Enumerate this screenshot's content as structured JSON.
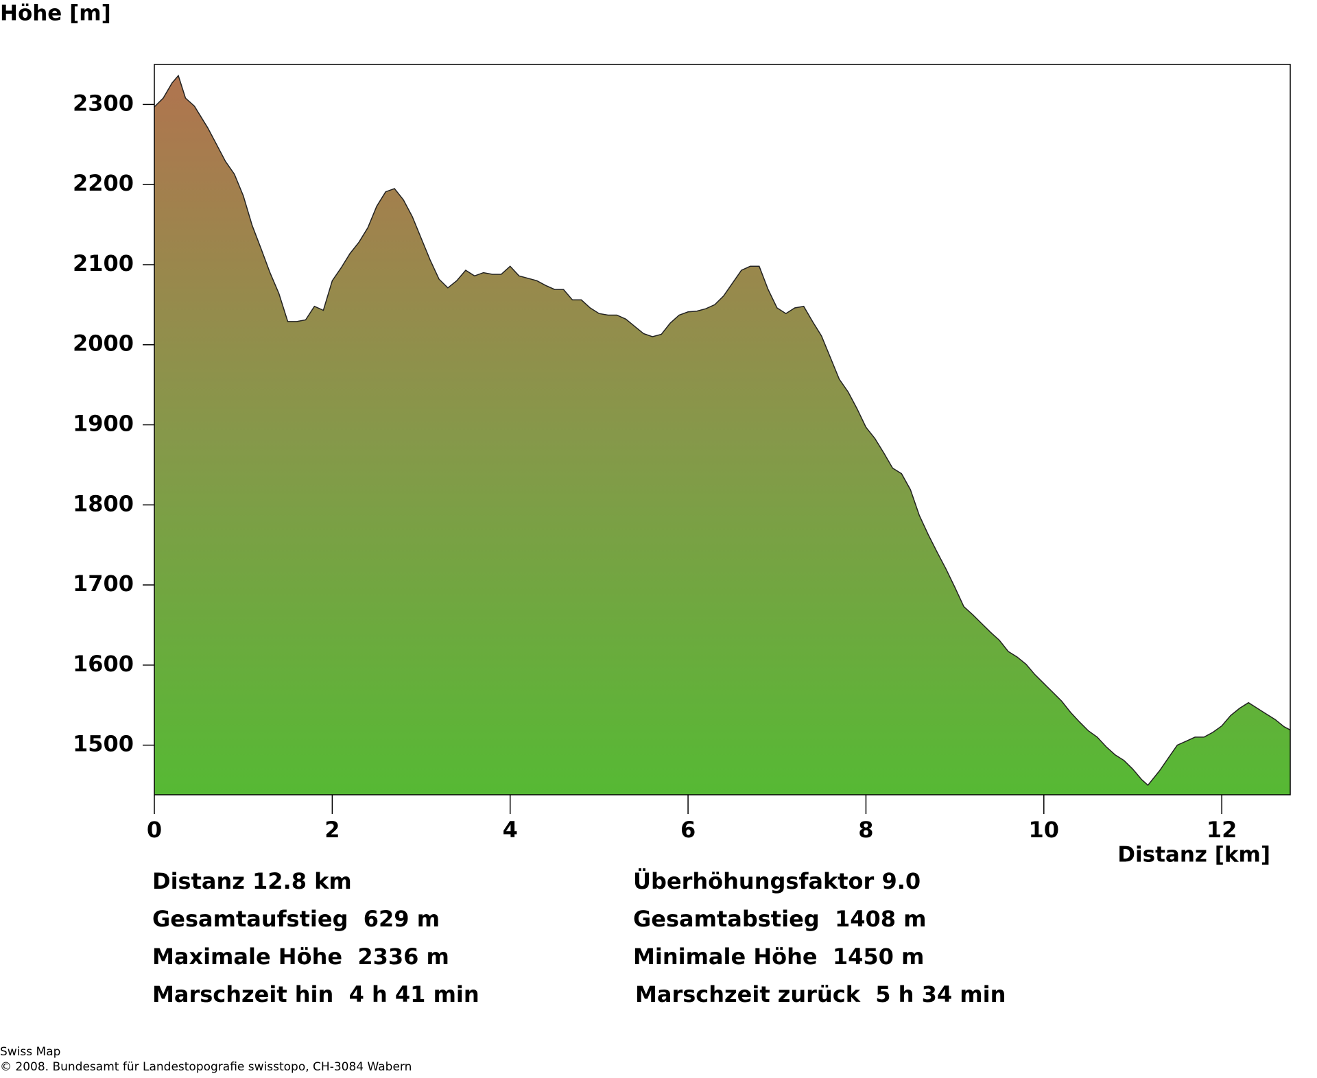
{
  "chart_data": {
    "type": "area",
    "y_label": "Höhe [m]",
    "x_label": "Distanz [km]",
    "x": [
      0,
      0.1,
      0.2,
      0.27,
      0.35,
      0.45,
      0.5,
      0.6,
      0.7,
      0.8,
      0.9,
      1.0,
      1.1,
      1.2,
      1.3,
      1.4,
      1.5,
      1.6,
      1.7,
      1.8,
      1.9,
      2.0,
      2.1,
      2.2,
      2.3,
      2.4,
      2.5,
      2.6,
      2.7,
      2.8,
      2.9,
      3.0,
      3.1,
      3.2,
      3.3,
      3.4,
      3.5,
      3.6,
      3.7,
      3.8,
      3.9,
      4.0,
      4.1,
      4.2,
      4.3,
      4.4,
      4.5,
      4.6,
      4.7,
      4.8,
      4.9,
      5.0,
      5.1,
      5.2,
      5.3,
      5.4,
      5.5,
      5.6,
      5.7,
      5.8,
      5.9,
      6.0,
      6.1,
      6.2,
      6.3,
      6.4,
      6.5,
      6.6,
      6.7,
      6.8,
      6.9,
      7.0,
      7.1,
      7.2,
      7.3,
      7.4,
      7.5,
      7.6,
      7.7,
      7.8,
      7.9,
      8.0,
      8.1,
      8.2,
      8.3,
      8.4,
      8.5,
      8.6,
      8.7,
      8.8,
      8.9,
      9.0,
      9.1,
      9.2,
      9.3,
      9.4,
      9.5,
      9.6,
      9.7,
      9.8,
      9.9,
      10.0,
      10.1,
      10.2,
      10.3,
      10.4,
      10.5,
      10.6,
      10.7,
      10.8,
      10.9,
      11.0,
      11.1,
      11.17,
      11.3,
      11.4,
      11.5,
      11.6,
      11.7,
      11.8,
      11.9,
      12.0,
      12.1,
      12.2,
      12.3,
      12.4,
      12.5,
      12.6,
      12.7,
      12.77
    ],
    "values": [
      2297,
      2308,
      2327,
      2336,
      2308,
      2298,
      2289,
      2271,
      2250,
      2229,
      2213,
      2186,
      2149,
      2120,
      2090,
      2064,
      2029,
      2029,
      2031,
      2048,
      2043,
      2080,
      2096,
      2114,
      2128,
      2146,
      2173,
      2191,
      2195,
      2181,
      2160,
      2133,
      2106,
      2082,
      2071,
      2080,
      2093,
      2086,
      2090,
      2088,
      2088,
      2098,
      2086,
      2083,
      2080,
      2074,
      2069,
      2069,
      2056,
      2056,
      2046,
      2039,
      2037,
      2037,
      2032,
      2023,
      2014,
      2010,
      2013,
      2027,
      2037,
      2041,
      2042,
      2045,
      2050,
      2061,
      2077,
      2093,
      2098,
      2098,
      2069,
      2046,
      2039,
      2046,
      2048,
      2029,
      2011,
      1984,
      1957,
      1941,
      1920,
      1897,
      1883,
      1865,
      1846,
      1839,
      1819,
      1787,
      1763,
      1741,
      1720,
      1697,
      1673,
      1663,
      1652,
      1641,
      1631,
      1617,
      1610,
      1601,
      1588,
      1577,
      1566,
      1555,
      1541,
      1529,
      1518,
      1510,
      1498,
      1488,
      1481,
      1470,
      1457,
      1450,
      1468,
      1484,
      1500,
      1505,
      1510,
      1510,
      1516,
      1524,
      1537,
      1546,
      1553,
      1546,
      1539,
      1532,
      1523,
      1519
    ],
    "xlim": [
      0,
      12.77
    ],
    "ylim": [
      1438,
      2350
    ],
    "xticks": [
      0,
      2,
      4,
      6,
      8,
      10,
      12
    ],
    "yticks": [
      1500,
      1600,
      1700,
      1800,
      1900,
      2000,
      2100,
      2200,
      2300
    ],
    "stats": [
      [
        "Distanz 12.8 km",
        "Gesamtaufstieg  629 m",
        "Maximale Höhe  2336 m",
        "Marschzeit hin  4 h 41 min"
      ],
      [
        "Überhöhungsfaktor 9.0",
        "Gesamtabstieg  1408 m",
        "Minimale Höhe  1450 m",
        "Marschzeit zurück  5 h 34 min"
      ]
    ],
    "footer": [
      "Swiss Map",
      "© 2008. Bundesamt für Landestopografie swisstopo, CH-3084 Wabern"
    ]
  }
}
